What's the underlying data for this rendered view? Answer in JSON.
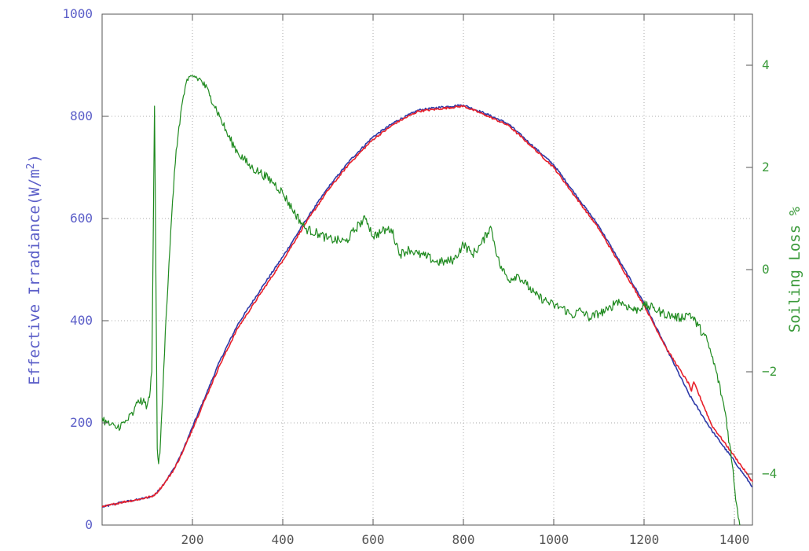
{
  "chart_data": {
    "type": "line",
    "title": "",
    "xlabel": "",
    "ylabel": "Effective Irradiance (W/m2)",
    "ylabel_parts": {
      "main": "Effective Irradiance(W/m",
      "sup": "2",
      "close": ")"
    },
    "y2label": "Soiling Loss %",
    "xlim": [
      0,
      1440
    ],
    "ylim": [
      0,
      1000
    ],
    "y2lim": [
      -5,
      5
    ],
    "grid": true,
    "legend": "none",
    "colors": {
      "axis_left": "#5b5ec8",
      "axis_right": "#3a9a3a",
      "axis_bottom": "#555555",
      "grid": "#aaaaaa"
    },
    "x_ticks": [
      200,
      400,
      600,
      800,
      1000,
      1200,
      1400
    ],
    "y_ticks": [
      0,
      200,
      400,
      600,
      800,
      1000
    ],
    "y2_ticks": [
      -4,
      -2,
      0,
      2,
      4
    ],
    "x_tick_labels": [
      "200",
      "400",
      "600",
      "800",
      "1000",
      "1200",
      "1400"
    ],
    "y_tick_labels": [
      "0",
      "200",
      "400",
      "600",
      "800",
      "1000"
    ],
    "y2_tick_labels": [
      "−4",
      "−2",
      "0",
      "2",
      "4"
    ],
    "series": [
      {
        "color": "#2e3aa8",
        "axis": "left",
        "noise": 2,
        "x": [
          0,
          40,
          80,
          110,
          120,
          140,
          160,
          180,
          200,
          230,
          260,
          300,
          350,
          400,
          450,
          500,
          550,
          600,
          650,
          700,
          750,
          800,
          850,
          900,
          950,
          1000,
          1050,
          1100,
          1150,
          1200,
          1250,
          1300,
          1350,
          1400,
          1440
        ],
        "y": [
          35,
          44,
          50,
          56,
          62,
          85,
          112,
          148,
          192,
          255,
          320,
          392,
          460,
          525,
          595,
          660,
          715,
          760,
          790,
          812,
          818,
          822,
          805,
          785,
          745,
          705,
          645,
          585,
          510,
          435,
          345,
          255,
          185,
          125,
          75
        ]
      },
      {
        "color": "#e8202a",
        "axis": "left",
        "noise": 2,
        "x": [
          0,
          40,
          80,
          110,
          120,
          140,
          160,
          180,
          200,
          230,
          260,
          300,
          350,
          400,
          450,
          500,
          550,
          600,
          650,
          700,
          750,
          800,
          850,
          900,
          950,
          1000,
          1050,
          1100,
          1150,
          1200,
          1250,
          1300,
          1305,
          1310,
          1350,
          1400,
          1440
        ],
        "y": [
          35,
          44,
          50,
          56,
          62,
          84,
          110,
          146,
          188,
          250,
          312,
          385,
          452,
          518,
          590,
          655,
          710,
          755,
          787,
          810,
          815,
          820,
          802,
          782,
          742,
          700,
          640,
          580,
          505,
          430,
          345,
          275,
          262,
          280,
          195,
          135,
          85
        ]
      },
      {
        "color": "#1f8a1f",
        "axis": "right",
        "noise": 0.09,
        "x": [
          0,
          10,
          30,
          50,
          70,
          80,
          90,
          100,
          105,
          110,
          113,
          116,
          119,
          122,
          125,
          128,
          131,
          140,
          150,
          160,
          170,
          180,
          190,
          200,
          210,
          220,
          240,
          260,
          280,
          300,
          330,
          350,
          380,
          400,
          420,
          450,
          480,
          500,
          540,
          570,
          585,
          600,
          620,
          640,
          660,
          680,
          700,
          720,
          740,
          760,
          780,
          800,
          820,
          840,
          860,
          880,
          900,
          920,
          940,
          960,
          980,
          1000,
          1020,
          1040,
          1060,
          1080,
          1100,
          1120,
          1140,
          1160,
          1180,
          1200,
          1220,
          1240,
          1260,
          1280,
          1300,
          1320,
          1340,
          1360,
          1380,
          1395,
          1405,
          1412
        ],
        "y": [
          -2.9,
          -3.0,
          -3.1,
          -3.0,
          -2.8,
          -2.55,
          -2.6,
          -2.65,
          -2.5,
          -2.0,
          0.5,
          3.2,
          0.0,
          -3.5,
          -3.8,
          -3.6,
          -3.0,
          -1.2,
          0.4,
          1.9,
          2.8,
          3.4,
          3.7,
          3.8,
          3.75,
          3.7,
          3.4,
          3.0,
          2.6,
          2.3,
          2.0,
          1.9,
          1.7,
          1.5,
          1.2,
          0.8,
          0.7,
          0.6,
          0.55,
          0.9,
          1.0,
          0.65,
          0.75,
          0.8,
          0.3,
          0.4,
          0.3,
          0.25,
          0.15,
          0.15,
          0.2,
          0.5,
          0.3,
          0.5,
          0.85,
          0.1,
          -0.2,
          -0.1,
          -0.3,
          -0.5,
          -0.6,
          -0.7,
          -0.75,
          -0.9,
          -0.8,
          -0.95,
          -0.85,
          -0.8,
          -0.6,
          -0.7,
          -0.8,
          -0.7,
          -0.75,
          -0.85,
          -0.9,
          -0.95,
          -0.85,
          -1.1,
          -1.4,
          -2.0,
          -2.8,
          -3.8,
          -4.6,
          -5.0
        ]
      }
    ]
  }
}
